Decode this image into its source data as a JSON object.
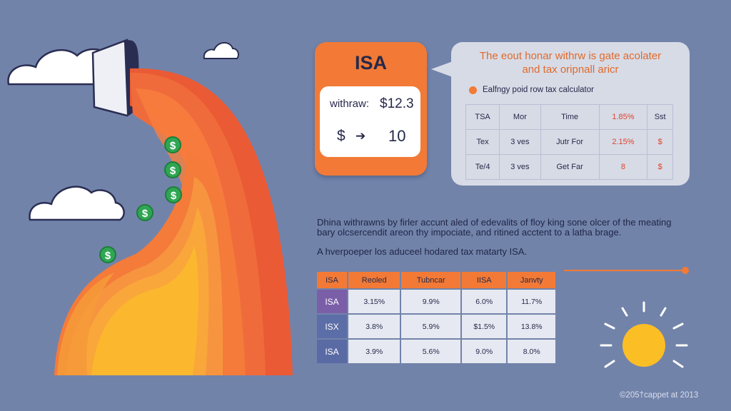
{
  "isa_card": {
    "title": "ISA",
    "withdraw_label": "withraw:",
    "withdraw_value": "$12.3",
    "dollar": "$",
    "arrow": "➔",
    "amount": "10"
  },
  "bubble": {
    "title_line1": "The eout honar withrw is gate acolater",
    "title_line2": "and tax oripnall aricr",
    "subtitle": "Ealfngy poid row tax calculator",
    "rows": [
      [
        "TSA",
        "Mor",
        "Time",
        "1.85%",
        "Sst"
      ],
      [
        "Tex",
        "3 ves",
        "Jutr For",
        "2.15%",
        "$"
      ],
      [
        "Te/4",
        "3 ves",
        "Get Far",
        "8",
        "$"
      ]
    ]
  },
  "description": {
    "line1": "Dhina withrawns by firler accunt aled of edevalits of floy king sone olcer of the meating",
    "line2": "bary olcsercendit areon thy impociate, and ritined acctent to a latha brage.",
    "line3": "A hverpoeper los aduceel hodared tax matarty ISA."
  },
  "main_table": {
    "headers": [
      "ISA",
      "Reoled",
      "Tubncar",
      "IISA",
      "Janvty"
    ],
    "rows": [
      [
        "ISA",
        "3.15%",
        "9.9%",
        "6.0%",
        "11.7%"
      ],
      [
        "ISX",
        "3.8%",
        "5.9%",
        "$1.5%",
        "13.8%"
      ],
      [
        "ISA",
        "3.9%",
        "5.6%",
        "9.0%",
        "8.0%"
      ]
    ]
  },
  "coins": [
    "$",
    "$",
    "$",
    "$",
    "$"
  ],
  "copyright": "©205†cappet at 2013",
  "colors": {
    "background": "#7283aa",
    "accent_orange": "#f27a36",
    "navy": "#26294a",
    "red_text": "#e0422c"
  }
}
